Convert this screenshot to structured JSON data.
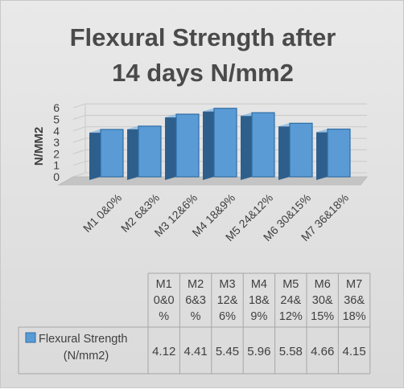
{
  "chart_data": {
    "type": "bar",
    "style": "3d-column",
    "title_lines": [
      "Flexural Strength after",
      "14 days N/mm2"
    ],
    "ylabel": "N/MM2",
    "ylim": [
      0,
      6
    ],
    "yticks": [
      "0",
      "1",
      "2",
      "3",
      "4",
      "5",
      "6"
    ],
    "grid": true,
    "categories": [
      "M1 0&0%",
      "M2 6&3%",
      "M3 12&6%",
      "M4 18&9%",
      "M5 24&12%",
      "M6 30&15%",
      "M7 36&18%"
    ],
    "table_headers": [
      [
        "M1",
        "0&0",
        "%"
      ],
      [
        "M2",
        "6&3",
        "%"
      ],
      [
        "M3",
        "12&",
        "6%"
      ],
      [
        "M4",
        "18&",
        "9%"
      ],
      [
        "M5",
        "24&",
        "12%"
      ],
      [
        "M6",
        "30&",
        "15%"
      ],
      [
        "M7",
        "36&",
        "18%"
      ]
    ],
    "series": [
      {
        "name_lines": [
          "Flexural Strength",
          "(N/mm2)"
        ],
        "color": "#5b9bd5",
        "values": [
          4.12,
          4.41,
          5.45,
          5.96,
          5.58,
          4.66,
          4.15
        ],
        "value_labels": [
          "4.12",
          "4.41",
          "5.45",
          "5.96",
          "5.58",
          "4.66",
          "4.15"
        ]
      }
    ],
    "colors": {
      "bar_front": "#5b9bd5",
      "bar_side": "#2e5f8c",
      "bar_top": "#9dc3e6",
      "text": "#404040",
      "title": "#4a4a4a",
      "table_border": "#a6a6a6"
    }
  }
}
